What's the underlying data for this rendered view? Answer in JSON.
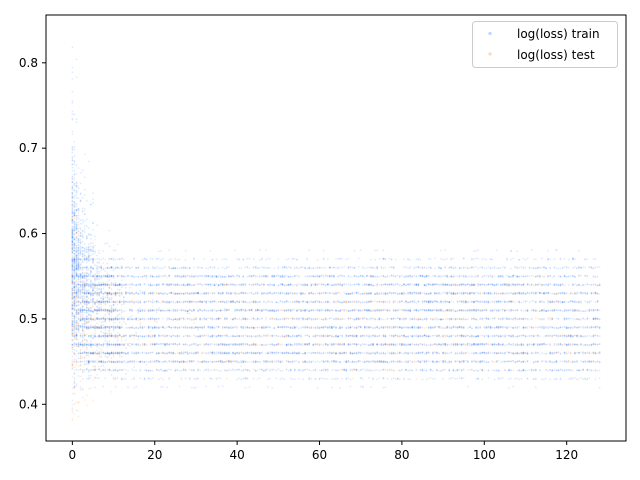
{
  "chart_data": {
    "type": "scatter",
    "title": "",
    "xlabel": "",
    "ylabel": "",
    "xlim": [
      -6.4,
      134.4
    ],
    "ylim": [
      0.357,
      0.856
    ],
    "xticks": [
      0,
      20,
      40,
      60,
      80,
      100,
      120
    ],
    "yticks": [
      0.4,
      0.5,
      0.6,
      0.7,
      0.8
    ],
    "grid": false,
    "legend_position": "top-right",
    "point_count_per_series": "thousands of points across epochs 0-128",
    "series": [
      {
        "name": "log(loss) train",
        "color": "#1f77ff",
        "alpha": 0.15,
        "x_range": [
          0,
          128
        ],
        "early_center": 0.57,
        "late_center": 0.5,
        "late_band": [
          0.42,
          0.58
        ],
        "early_max": 0.83
      },
      {
        "name": "log(loss) test",
        "color": "#ff7f0e",
        "alpha": 0.15,
        "x_range": [
          0,
          128
        ],
        "early_center": 0.52,
        "late_center": 0.49,
        "late_band": [
          0.43,
          0.56
        ],
        "early_max": 0.62
      }
    ]
  }
}
